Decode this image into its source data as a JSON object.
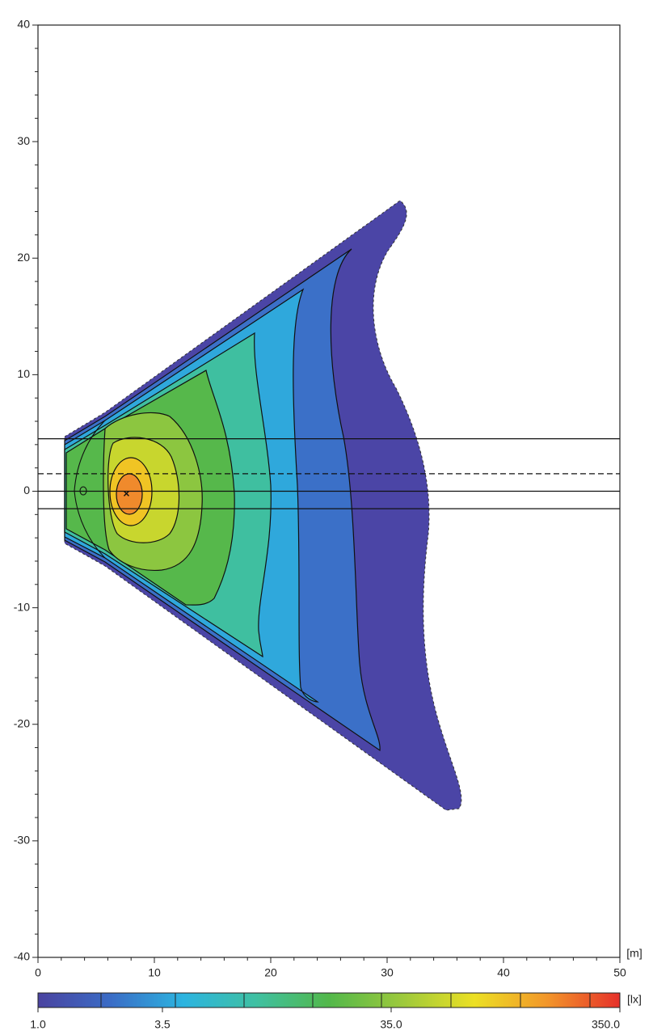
{
  "chart_data": {
    "type": "contour",
    "xlim": [
      0,
      50
    ],
    "ylim": [
      -40,
      40
    ],
    "xticks": [
      0,
      10,
      20,
      30,
      40,
      50
    ],
    "yticks": [
      -40,
      -30,
      -20,
      -10,
      0,
      10,
      20,
      30,
      40
    ],
    "xminor": [
      2,
      4,
      6,
      8,
      12,
      14,
      16,
      18,
      22,
      24,
      26,
      28,
      32,
      34,
      36,
      38,
      42,
      44,
      46,
      48
    ],
    "yminor": [
      -38,
      -36,
      -34,
      -32,
      -28,
      -26,
      -24,
      -22,
      -18,
      -16,
      -14,
      -12,
      -8,
      -6,
      -4,
      -2,
      2,
      4,
      6,
      8,
      12,
      14,
      16,
      18,
      22,
      24,
      26,
      28,
      32,
      34,
      36,
      38
    ],
    "xlabel": "[m]",
    "reference_lines": [
      {
        "y": 4.5,
        "style": "solid"
      },
      {
        "y": 1.5,
        "style": "dashed"
      },
      {
        "y": 0,
        "style": "solid"
      },
      {
        "y": -1.5,
        "style": "solid"
      }
    ],
    "max_point": {
      "x": 7.6,
      "y": -0.2
    },
    "colorbar": {
      "label": "[lx]",
      "log": true,
      "lim": [
        1,
        350
      ],
      "ticks": [
        {
          "value": 1,
          "label": "1.0"
        },
        {
          "value": 3.5,
          "label": "3.5"
        },
        {
          "value": 35,
          "label": "35.0"
        },
        {
          "value": 350,
          "label": "350.0"
        }
      ],
      "colors": [
        "#4a43a0",
        "#3a6cc6",
        "#2cb4e0",
        "#3fc0a2",
        "#52b84a",
        "#9cc93c",
        "#ece024",
        "#f2962a",
        "#e6302a"
      ]
    }
  }
}
